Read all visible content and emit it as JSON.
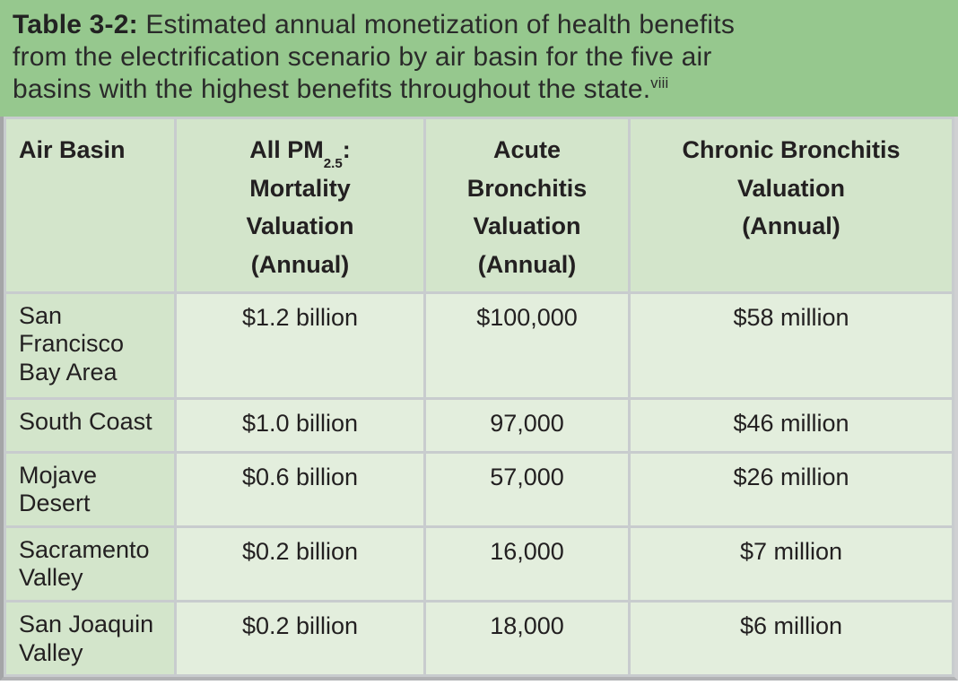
{
  "caption": {
    "label": "Table 3-2:",
    "line1_rest": " Estimated annual monetization of health benefits",
    "line2": "from the electrification scenario by air basin for the five air",
    "line3": "basins with the highest benefits throughout the state.",
    "footnote_ref": "viii"
  },
  "table": {
    "headers": [
      {
        "label": "Air Basin"
      },
      {
        "prefix": "All PM",
        "subscript": "2.5",
        "colon": ":",
        "line2": "Mortality",
        "line3": "Valuation",
        "line4": "(Annual)"
      },
      {
        "line1": "Acute",
        "line2": "Bronchitis",
        "line3": "Valuation",
        "line4": "(Annual)"
      },
      {
        "line1": "Chronic Bronchitis",
        "line2": "Valuation",
        "line3": "(Annual)"
      }
    ],
    "rows": [
      {
        "air_basin": "San Francisco Bay Area",
        "pm25_mortality": "$1.2 billion",
        "acute_bronchitis": "$100,000",
        "chronic_bronchitis": "$58 million"
      },
      {
        "air_basin": "South Coast",
        "pm25_mortality": "$1.0 billion",
        "acute_bronchitis": "97,000",
        "chronic_bronchitis": "$46 million"
      },
      {
        "air_basin": "Mojave Desert",
        "pm25_mortality": "$0.6 billion",
        "acute_bronchitis": "57,000",
        "chronic_bronchitis": "$26 million"
      },
      {
        "air_basin": "Sacramento Valley",
        "pm25_mortality": "$0.2 billion",
        "acute_bronchitis": "16,000",
        "chronic_bronchitis": "$7 million"
      },
      {
        "air_basin": "San Joaquin Valley",
        "pm25_mortality": "$0.2 billion",
        "acute_bronchitis": "18,000",
        "chronic_bronchitis": "$6 million"
      }
    ]
  },
  "colors": {
    "caption_bg": "#96c88e",
    "header_bg": "#d3e5cb",
    "data_cell_bg": "#e3eedd",
    "grid_line": "#c8ccce",
    "text": "#232021"
  }
}
